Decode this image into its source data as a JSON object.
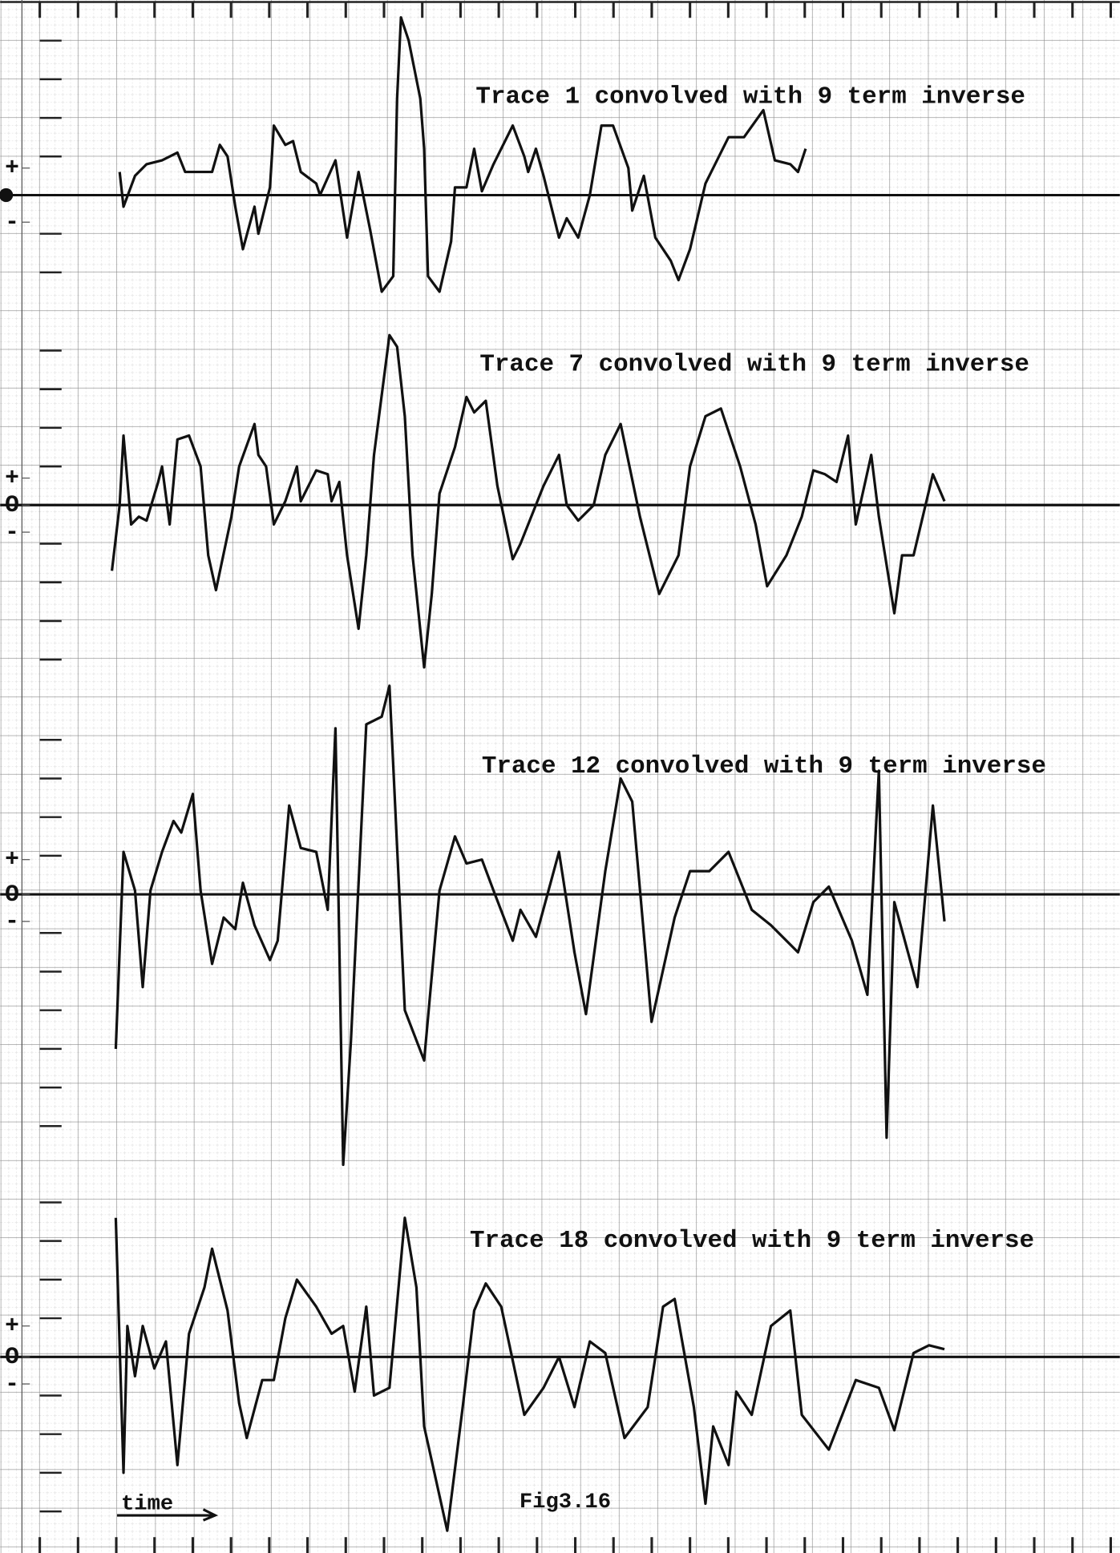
{
  "chart_data": [
    {
      "type": "line",
      "title": "Trace 1 convolved with 9 term inverse",
      "xlim": [
        0,
        29
      ],
      "ylim": [
        -3,
        5
      ],
      "yticks": [
        {
          "value": 0.7,
          "label": "+"
        },
        {
          "value": -0.7,
          "label": "-"
        }
      ],
      "color": "#111111",
      "x": [
        3.1,
        3.2,
        3.5,
        3.8,
        4.2,
        4.6,
        4.8,
        5.1,
        5.5,
        5.7,
        5.9,
        6.1,
        6.3,
        6.6,
        6.7,
        7.0,
        7.1,
        7.4,
        7.6,
        7.8,
        8.2,
        8.3,
        8.7,
        9.0,
        9.3,
        9.6,
        9.9,
        10.2,
        10.3,
        10.4,
        10.6,
        10.9,
        11.0,
        11.1,
        11.4,
        11.7,
        11.8,
        12.1,
        12.3,
        12.5,
        12.8,
        13.3,
        13.6,
        13.7,
        13.9,
        14.1,
        14.5,
        14.7,
        15.0,
        15.3,
        15.6,
        15.9,
        16.3,
        16.4,
        16.7,
        17.0,
        17.4,
        17.6,
        17.9,
        18.3,
        18.9,
        19.3,
        19.8,
        20.1,
        20.5,
        20.7,
        20.9
      ],
      "values": [
        0.6,
        -0.3,
        0.5,
        0.8,
        0.9,
        1.1,
        0.6,
        0.6,
        0.6,
        1.3,
        1.0,
        -0.3,
        -1.4,
        -0.3,
        -1.0,
        0.2,
        1.8,
        1.3,
        1.4,
        0.6,
        0.3,
        0.0,
        0.9,
        -1.1,
        0.6,
        -0.9,
        -2.5,
        -2.1,
        2.5,
        4.6,
        4.0,
        2.5,
        1.2,
        -2.1,
        -2.5,
        -1.2,
        0.2,
        0.2,
        1.2,
        0.1,
        0.8,
        1.8,
        1.0,
        0.6,
        1.2,
        0.5,
        -1.1,
        -0.6,
        -1.1,
        0.0,
        1.8,
        1.8,
        0.7,
        -0.4,
        0.5,
        -1.1,
        -1.7,
        -2.2,
        -1.4,
        0.3,
        1.5,
        1.5,
        2.2,
        0.9,
        0.8,
        0.6,
        1.2
      ]
    },
    {
      "type": "line",
      "title": "Trace 7 convolved with 9 term inverse",
      "xlim": [
        0,
        29
      ],
      "ylim": [
        -5,
        5
      ],
      "yticks": [
        {
          "value": 0.7,
          "label": "+"
        },
        {
          "value": 0,
          "label": "O"
        },
        {
          "value": -0.7,
          "label": "-"
        }
      ],
      "color": "#111111",
      "x": [
        2.9,
        3.1,
        3.2,
        3.4,
        3.6,
        3.8,
        4.1,
        4.2,
        4.4,
        4.6,
        4.9,
        5.2,
        5.4,
        5.6,
        6.0,
        6.2,
        6.6,
        6.7,
        6.9,
        7.1,
        7.4,
        7.7,
        7.8,
        8.2,
        8.5,
        8.6,
        8.8,
        9.0,
        9.3,
        9.5,
        9.7,
        10.1,
        10.3,
        10.5,
        10.7,
        11.0,
        11.2,
        11.4,
        11.8,
        12.1,
        12.3,
        12.6,
        12.9,
        13.3,
        13.5,
        14.1,
        14.5,
        14.7,
        15.0,
        15.4,
        15.7,
        16.1,
        16.6,
        17.1,
        17.6,
        17.9,
        18.3,
        18.7,
        19.2,
        19.6,
        19.9,
        20.4,
        20.8,
        21.1,
        21.4,
        21.7,
        22.0,
        22.2,
        22.6,
        22.8,
        23.2,
        23.4,
        23.7,
        24.2,
        24.5
      ],
      "values": [
        -1.7,
        0.0,
        1.8,
        -0.5,
        -0.3,
        -0.4,
        0.6,
        1.0,
        -0.5,
        1.7,
        1.8,
        1.0,
        -1.3,
        -2.2,
        -0.3,
        1.0,
        2.1,
        1.3,
        1.0,
        -0.5,
        0.1,
        1.0,
        0.1,
        0.9,
        0.8,
        0.1,
        0.6,
        -1.3,
        -3.2,
        -1.3,
        1.3,
        4.4,
        4.1,
        2.3,
        -1.3,
        -4.2,
        -2.3,
        0.3,
        1.5,
        2.8,
        2.4,
        2.7,
        0.5,
        -1.4,
        -1.0,
        0.5,
        1.3,
        0.0,
        -0.4,
        0.0,
        1.3,
        2.1,
        -0.3,
        -2.3,
        -1.3,
        1.0,
        2.3,
        2.5,
        1.0,
        -0.5,
        -2.1,
        -1.3,
        -0.3,
        0.9,
        0.8,
        0.6,
        1.8,
        -0.5,
        1.3,
        -0.3,
        -2.8,
        -1.3,
        -1.3,
        0.8,
        0.1
      ]
    },
    {
      "type": "line",
      "title": "Trace 12 convolved with 9 term inverse",
      "xlim": [
        0,
        29
      ],
      "ylim": [
        -7,
        5
      ],
      "yticks": [
        {
          "value": 0.9,
          "label": "+"
        },
        {
          "value": 0,
          "label": "O"
        },
        {
          "value": -0.7,
          "label": "-"
        }
      ],
      "color": "#111111",
      "x": [
        3.0,
        3.2,
        3.5,
        3.7,
        3.9,
        4.2,
        4.5,
        4.7,
        5.0,
        5.2,
        5.5,
        5.8,
        6.1,
        6.3,
        6.6,
        7.0,
        7.2,
        7.5,
        7.8,
        8.2,
        8.5,
        8.7,
        8.9,
        9.1,
        9.5,
        9.9,
        10.1,
        10.5,
        11.0,
        11.4,
        11.8,
        12.1,
        12.5,
        12.8,
        13.3,
        13.5,
        13.9,
        14.5,
        14.9,
        15.2,
        15.7,
        16.1,
        16.4,
        16.9,
        17.5,
        17.9,
        18.4,
        18.9,
        19.5,
        20.0,
        20.7,
        21.1,
        21.5,
        22.1,
        22.5,
        22.8,
        23.0,
        23.2,
        23.8,
        24.2,
        24.5
      ],
      "values": [
        -4.0,
        1.1,
        0.1,
        -2.4,
        0.1,
        1.1,
        1.9,
        1.6,
        2.6,
        0.1,
        -1.8,
        -0.6,
        -0.9,
        0.3,
        -0.8,
        -1.7,
        -1.2,
        2.3,
        1.2,
        1.1,
        -0.4,
        4.3,
        -7.0,
        -3.8,
        4.4,
        4.6,
        5.4,
        -3.0,
        -4.3,
        0.1,
        1.5,
        0.8,
        0.9,
        0.1,
        -1.2,
        -0.4,
        -1.1,
        1.1,
        -1.5,
        -3.1,
        0.6,
        3.0,
        2.4,
        -3.3,
        -0.6,
        0.6,
        0.6,
        1.1,
        -0.4,
        -0.8,
        -1.5,
        -0.2,
        0.2,
        -1.2,
        -2.6,
        3.2,
        -6.3,
        -0.2,
        -2.4,
        2.3,
        -0.7
      ]
    },
    {
      "type": "line",
      "title": "Trace 18 convolved with 9 term inverse",
      "xlim": [
        0,
        29
      ],
      "ylim": [
        -5,
        5
      ],
      "yticks": [
        {
          "value": 0.8,
          "label": "+"
        },
        {
          "value": 0,
          "label": "O"
        },
        {
          "value": -0.7,
          "label": "-"
        }
      ],
      "color": "#111111",
      "x": [
        3.0,
        3.2,
        3.3,
        3.5,
        3.7,
        4.0,
        4.3,
        4.6,
        4.9,
        5.3,
        5.5,
        5.9,
        6.2,
        6.4,
        6.8,
        7.1,
        7.4,
        7.7,
        8.2,
        8.6,
        8.9,
        9.2,
        9.5,
        9.7,
        10.1,
        10.5,
        10.8,
        11.0,
        11.6,
        12.0,
        12.3,
        12.6,
        13.0,
        13.6,
        14.1,
        14.5,
        14.9,
        15.3,
        15.7,
        16.2,
        16.8,
        17.2,
        17.5,
        18.0,
        18.3,
        18.5,
        18.9,
        19.1,
        19.5,
        20.0,
        20.5,
        20.8,
        21.5,
        22.2,
        22.8,
        23.2,
        23.7,
        24.1,
        24.5
      ],
      "values": [
        3.6,
        -3.0,
        0.8,
        -0.5,
        0.8,
        -0.3,
        0.4,
        -2.8,
        0.6,
        1.8,
        2.8,
        1.2,
        -1.2,
        -2.1,
        -0.6,
        -0.6,
        1.0,
        2.0,
        1.3,
        0.6,
        0.8,
        -0.9,
        1.3,
        -1.0,
        -0.8,
        3.6,
        1.8,
        -1.8,
        -4.5,
        -1.3,
        1.2,
        1.9,
        1.3,
        -1.5,
        -0.8,
        0.0,
        -1.3,
        0.4,
        0.1,
        -2.1,
        -1.3,
        1.3,
        1.5,
        -1.3,
        -3.8,
        -1.8,
        -2.8,
        -0.9,
        -1.5,
        0.8,
        1.2,
        -1.5,
        -2.4,
        -0.6,
        -0.8,
        -1.9,
        0.1,
        0.3,
        0.2
      ]
    }
  ],
  "caption": {
    "time_label": "time",
    "figure": "Fig3.16"
  }
}
